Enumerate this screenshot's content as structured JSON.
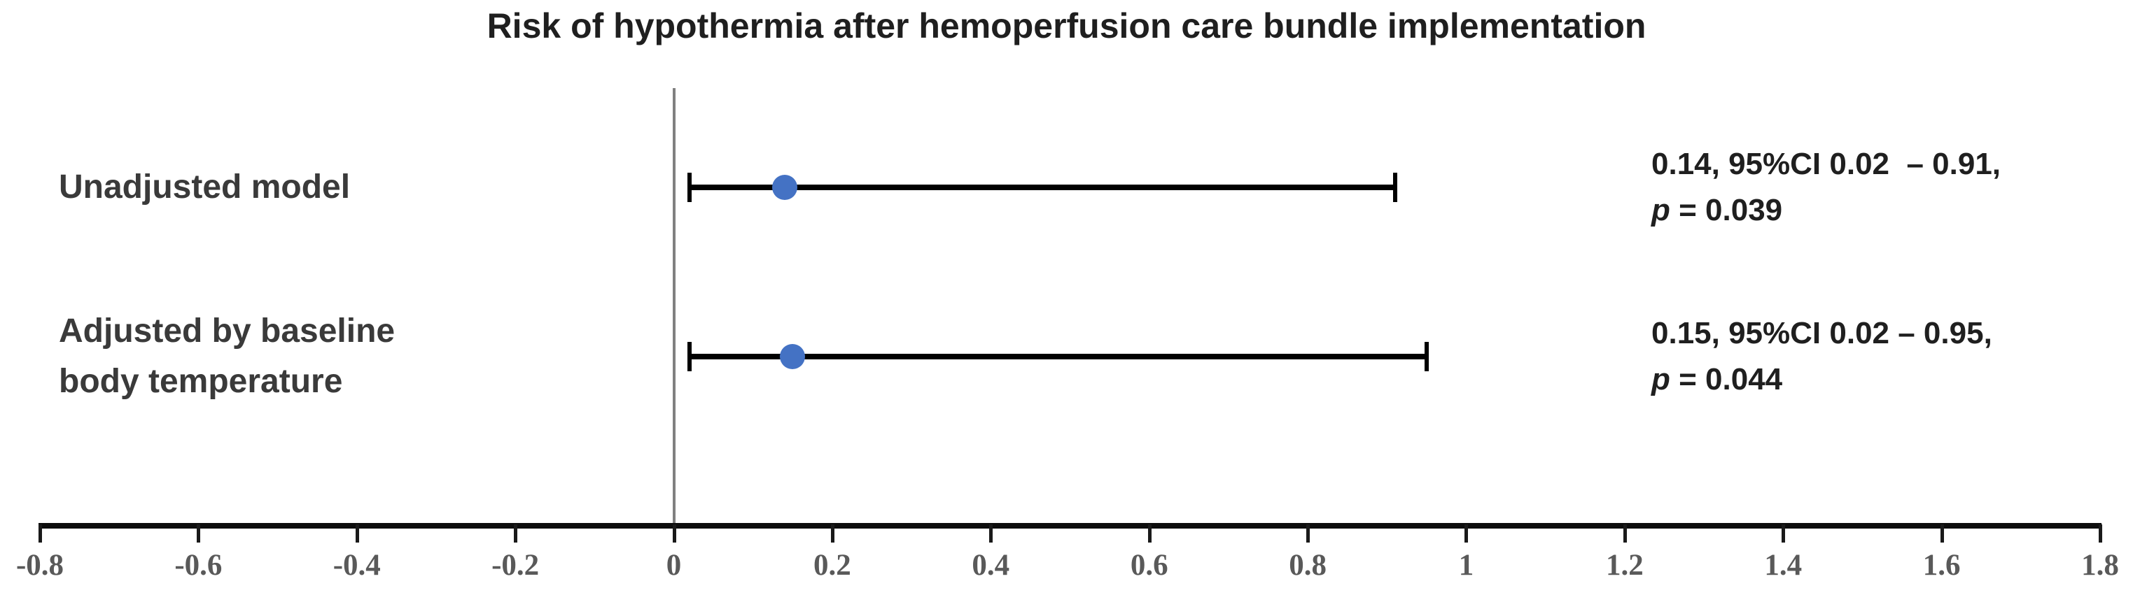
{
  "chart_data": {
    "type": "scatter",
    "subtype": "forest-plot",
    "title": "Risk of hypothermia after hemoperfusion care bundle implementation",
    "axis": {
      "min": -0.8,
      "max": 1.8,
      "step": 0.2,
      "tick_labels": [
        "-0.8",
        "-0.6",
        "-0.4",
        "-0.2",
        "0",
        "0.2",
        "0.4",
        "0.6",
        "0.8",
        "1",
        "1.2",
        "1.4",
        "1.6",
        "1.8"
      ],
      "zero_reference_line": 0,
      "grid": false
    },
    "legend": "none",
    "rows": [
      {
        "label": "Unadjusted model",
        "label_lines": [
          "Unadjusted model"
        ],
        "estimate": 0.14,
        "ci_low": 0.02,
        "ci_high": 0.91,
        "p_value": 0.039,
        "annotation": {
          "line1": "0.14, 95%CI 0.02  – 0.91,",
          "p_label": "p",
          "p_rest": " = 0.039"
        }
      },
      {
        "label": "Adjusted by baseline body temperature",
        "label_lines": [
          "Adjusted by baseline",
          "body temperature"
        ],
        "estimate": 0.15,
        "ci_low": 0.02,
        "ci_high": 0.95,
        "p_value": 0.044,
        "annotation": {
          "line1": "0.15, 95%CI 0.02 – 0.95,",
          "p_label": "p",
          "p_rest": " = 0.044"
        }
      }
    ],
    "colors": {
      "point_blue": "#4472C4",
      "ci_black": "#000000",
      "zero_line_gray": "#808080",
      "axis_black": "#0d0d0d",
      "tick_label_gray": "#595959",
      "text_dark": "#1f1f1f"
    }
  }
}
